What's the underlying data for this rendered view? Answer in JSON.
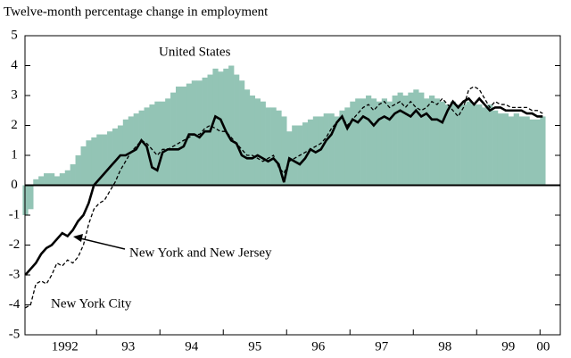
{
  "chart_data": {
    "type": "bar-line",
    "title": "Twelve-month percentage change in employment",
    "ylim": [
      -5,
      5
    ],
    "yticks": [
      -5,
      -4,
      -3,
      -2,
      -1,
      0,
      1,
      2,
      3,
      4,
      5
    ],
    "xlim": [
      1991.87,
      2000.32
    ],
    "xticks": [
      {
        "value": 1992.5,
        "label": "1992"
      },
      {
        "value": 1993.5,
        "label": "93"
      },
      {
        "value": 1994.5,
        "label": "94"
      },
      {
        "value": 1995.5,
        "label": "95"
      },
      {
        "value": 1996.5,
        "label": "96"
      },
      {
        "value": 1997.5,
        "label": "97"
      },
      {
        "value": 1998.5,
        "label": "98"
      },
      {
        "value": 1999.5,
        "label": "99"
      },
      {
        "value": 2000.05,
        "label": "00"
      }
    ],
    "xtick_marks": [
      1993,
      1994,
      1995,
      1996,
      1997,
      1998,
      1999,
      2000
    ],
    "x": [
      1991.875,
      1991.958,
      1992.042,
      1992.125,
      1992.208,
      1992.292,
      1992.375,
      1992.458,
      1992.542,
      1992.625,
      1992.708,
      1992.792,
      1992.875,
      1992.958,
      1993.042,
      1993.125,
      1993.208,
      1993.292,
      1993.375,
      1993.458,
      1993.542,
      1993.625,
      1993.708,
      1993.792,
      1993.875,
      1993.958,
      1994.042,
      1994.125,
      1994.208,
      1994.292,
      1994.375,
      1994.458,
      1994.542,
      1994.625,
      1994.708,
      1994.792,
      1994.875,
      1994.958,
      1995.042,
      1995.125,
      1995.208,
      1995.292,
      1995.375,
      1995.458,
      1995.542,
      1995.625,
      1995.708,
      1995.792,
      1995.875,
      1995.958,
      1996.042,
      1996.125,
      1996.208,
      1996.292,
      1996.375,
      1996.458,
      1996.542,
      1996.625,
      1996.708,
      1996.792,
      1996.875,
      1996.958,
      1997.042,
      1997.125,
      1997.208,
      1997.292,
      1997.375,
      1997.458,
      1997.542,
      1997.625,
      1997.708,
      1997.792,
      1997.875,
      1997.958,
      1998.042,
      1998.125,
      1998.208,
      1998.292,
      1998.375,
      1998.458,
      1998.542,
      1998.625,
      1998.708,
      1998.792,
      1998.875,
      1998.958,
      1999.042,
      1999.125,
      1999.208,
      1999.292,
      1999.375,
      1999.458,
      1999.542,
      1999.625,
      1999.708,
      1999.792,
      1999.875,
      1999.958,
      2000.042
    ],
    "series": [
      {
        "name": "United States",
        "kind": "bar",
        "color": "#93c4b5",
        "values": [
          -1.0,
          -0.8,
          0.2,
          0.3,
          0.4,
          0.4,
          0.3,
          0.4,
          0.5,
          0.7,
          1.0,
          1.3,
          1.5,
          1.6,
          1.7,
          1.7,
          1.8,
          1.9,
          2.0,
          2.2,
          2.3,
          2.4,
          2.5,
          2.6,
          2.7,
          2.8,
          2.8,
          2.9,
          3.1,
          3.3,
          3.3,
          3.4,
          3.5,
          3.5,
          3.6,
          3.7,
          3.9,
          3.8,
          3.9,
          4.0,
          3.7,
          3.5,
          3.2,
          3.0,
          2.9,
          2.8,
          2.6,
          2.6,
          2.5,
          2.3,
          1.8,
          2.0,
          2.0,
          2.1,
          2.2,
          2.3,
          2.3,
          2.4,
          2.4,
          2.3,
          2.5,
          2.6,
          2.8,
          2.9,
          2.9,
          3.0,
          2.9,
          2.8,
          2.9,
          2.8,
          3.0,
          3.1,
          3.0,
          3.1,
          3.2,
          3.1,
          2.9,
          3.0,
          2.9,
          2.8,
          2.7,
          2.8,
          2.7,
          2.7,
          2.8,
          2.7,
          2.7,
          2.6,
          2.7,
          2.5,
          2.4,
          2.4,
          2.3,
          2.4,
          2.3,
          2.3,
          2.2,
          2.2,
          2.3
        ]
      },
      {
        "name": "New York and New Jersey",
        "kind": "line",
        "dash": "solid",
        "color": "#000000",
        "values": [
          -3.0,
          -2.8,
          -2.6,
          -2.3,
          -2.1,
          -2.0,
          -1.8,
          -1.6,
          -1.7,
          -1.5,
          -1.2,
          -1.0,
          -0.6,
          0.0,
          0.2,
          0.4,
          0.6,
          0.8,
          1.0,
          1.0,
          1.1,
          1.2,
          1.5,
          1.3,
          0.6,
          0.5,
          1.1,
          1.2,
          1.2,
          1.2,
          1.3,
          1.7,
          1.7,
          1.6,
          1.8,
          1.8,
          2.3,
          2.2,
          1.8,
          1.5,
          1.4,
          1.0,
          0.9,
          0.9,
          1.0,
          0.9,
          0.8,
          0.9,
          0.7,
          0.1,
          0.9,
          0.8,
          0.7,
          0.9,
          1.2,
          1.1,
          1.2,
          1.5,
          1.7,
          2.1,
          2.3,
          1.9,
          2.2,
          2.1,
          2.3,
          2.2,
          2.0,
          2.2,
          2.3,
          2.2,
          2.4,
          2.5,
          2.4,
          2.3,
          2.5,
          2.3,
          2.4,
          2.2,
          2.2,
          2.1,
          2.5,
          2.8,
          2.6,
          2.8,
          2.9,
          2.7,
          2.9,
          2.7,
          2.5,
          2.6,
          2.6,
          2.5,
          2.5,
          2.5,
          2.5,
          2.4,
          2.4,
          2.3,
          2.3
        ]
      },
      {
        "name": "New York City",
        "kind": "line",
        "dash": "dashed",
        "color": "#000000",
        "values": [
          -4.1,
          -4.0,
          -3.3,
          -3.2,
          -3.3,
          -3.0,
          -2.6,
          -2.7,
          -2.5,
          -2.6,
          -2.4,
          -2.0,
          -1.3,
          -0.8,
          -0.6,
          -0.5,
          -0.2,
          0.1,
          0.5,
          0.8,
          1.1,
          1.3,
          1.5,
          1.4,
          1.2,
          1.0,
          1.2,
          1.2,
          1.3,
          1.4,
          1.5,
          1.6,
          1.7,
          1.7,
          1.9,
          2.0,
          1.9,
          1.8,
          1.8,
          1.6,
          1.4,
          1.2,
          1.0,
          1.0,
          0.9,
          0.8,
          0.9,
          1.0,
          0.6,
          0.4,
          0.8,
          0.9,
          1.0,
          1.1,
          1.2,
          1.3,
          1.4,
          1.6,
          1.9,
          2.1,
          2.3,
          2.0,
          2.2,
          2.4,
          2.6,
          2.7,
          2.5,
          2.7,
          2.8,
          2.6,
          2.7,
          2.8,
          2.6,
          2.8,
          2.6,
          2.5,
          2.6,
          2.8,
          2.7,
          2.9,
          2.7,
          2.5,
          2.3,
          2.6,
          3.2,
          3.3,
          3.2,
          2.9,
          2.6,
          2.8,
          2.7,
          2.7,
          2.6,
          2.6,
          2.6,
          2.6,
          2.5,
          2.5,
          2.4
        ]
      }
    ]
  }
}
